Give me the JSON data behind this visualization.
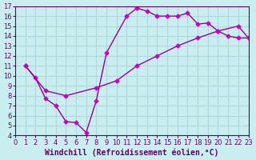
{
  "xlabel": "Windchill (Refroidissement éolien,°C)",
  "ylabel": "",
  "bg_color": "#c8eef0",
  "grid_color": "#b0d8dc",
  "line_color": "#990099",
  "marker_color": "#cc00cc",
  "xlim": [
    0,
    23
  ],
  "ylim": [
    4,
    17
  ],
  "xticks": [
    0,
    1,
    2,
    3,
    4,
    5,
    6,
    7,
    8,
    9,
    10,
    11,
    12,
    13,
    14,
    15,
    16,
    17,
    18,
    19,
    20,
    21,
    22,
    23
  ],
  "yticks": [
    4,
    5,
    6,
    7,
    8,
    9,
    10,
    11,
    12,
    13,
    14,
    15,
    16,
    17
  ],
  "line1_x": [
    1,
    2,
    3,
    4,
    5,
    6,
    7,
    8,
    9,
    11,
    12,
    13,
    14,
    15,
    16,
    17,
    18,
    19,
    20,
    21,
    22,
    23
  ],
  "line1_y": [
    11,
    9.8,
    7.7,
    7.0,
    5.4,
    5.3,
    4.3,
    7.5,
    12.3,
    16.0,
    16.8,
    16.5,
    16.0,
    16.0,
    16.0,
    16.3,
    15.2,
    15.3,
    14.5,
    14.0,
    13.8,
    13.8
  ],
  "line2_x": [
    1,
    3,
    5,
    8,
    10,
    12,
    14,
    16,
    18,
    20,
    22,
    23
  ],
  "line2_y": [
    11,
    8.5,
    8.0,
    8.8,
    9.5,
    11.0,
    12.0,
    13.0,
    13.8,
    14.5,
    15.0,
    13.8
  ],
  "tick_fontsize": 6,
  "label_fontsize": 7
}
